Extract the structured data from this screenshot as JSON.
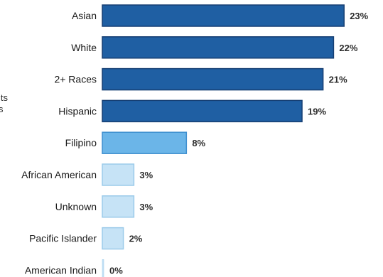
{
  "side_text": [
    "its",
    "s"
  ],
  "chart_data": {
    "type": "bar",
    "orientation": "horizontal",
    "title": "",
    "xlabel": "",
    "ylabel": "",
    "categories": [
      "Asian",
      "White",
      "2+ Races",
      "Hispanic",
      "Filipino",
      "African American",
      "Unknown",
      "Pacific Islander",
      "American Indian"
    ],
    "values": [
      23,
      22,
      21,
      19,
      8,
      3,
      3,
      2,
      0
    ],
    "value_labels": [
      "23%",
      "22%",
      "21%",
      "19%",
      "8%",
      "3%",
      "3%",
      "2%",
      "0%"
    ],
    "xlim": [
      0,
      24
    ],
    "grid": false,
    "legend": "none",
    "colors": {
      "dark_fill": "#1f5fa3",
      "dark_stroke": "#163f73",
      "medium_fill": "#6bb5e8",
      "medium_stroke": "#3f8fcf",
      "light_fill": "#c6e3f6",
      "light_stroke": "#9ccbea"
    },
    "bar_shade": [
      "dark",
      "dark",
      "dark",
      "dark",
      "medium",
      "light",
      "light",
      "light",
      "light"
    ]
  }
}
